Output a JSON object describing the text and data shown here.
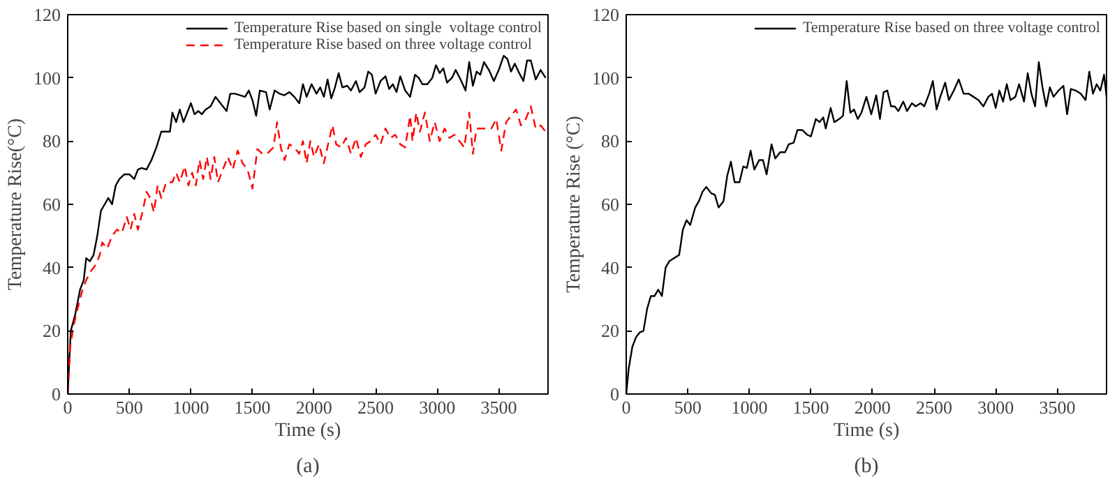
{
  "chart_data": [
    {
      "type": "line",
      "xlabel": "Time (s)",
      "ylabel": "Temperature Rise(°C)",
      "annotations": [
        "(a)"
      ],
      "xlim": [
        0,
        3900
      ],
      "ylim": [
        0,
        120
      ],
      "xticks": [
        0,
        500,
        1000,
        1500,
        2000,
        2500,
        3000,
        3500
      ],
      "yticks": [
        0,
        20,
        40,
        60,
        80,
        100,
        120
      ],
      "grid": false,
      "legend": "top right",
      "series": [
        {
          "name": "Temperature Rise based on single  voltage control",
          "color": "#000000",
          "line_style": "solid",
          "x": [
            0,
            25,
            60,
            100,
            130,
            150,
            180,
            210,
            240,
            270,
            300,
            330,
            360,
            390,
            420,
            460,
            500,
            540,
            570,
            600,
            640,
            680,
            720,
            760,
            800,
            830,
            850,
            880,
            910,
            940,
            980,
            1000,
            1030,
            1060,
            1090,
            1120,
            1160,
            1200,
            1240,
            1290,
            1320,
            1360,
            1400,
            1440,
            1470,
            1500,
            1530,
            1560,
            1610,
            1640,
            1680,
            1720,
            1760,
            1800,
            1840,
            1880,
            1910,
            1940,
            1980,
            2020,
            2050,
            2080,
            2110,
            2140,
            2170,
            2200,
            2230,
            2270,
            2300,
            2340,
            2370,
            2410,
            2440,
            2470,
            2500,
            2540,
            2580,
            2610,
            2640,
            2670,
            2700,
            2740,
            2780,
            2820,
            2850,
            2880,
            2920,
            2960,
            2990,
            3020,
            3050,
            3080,
            3120,
            3150,
            3190,
            3230,
            3260,
            3290,
            3320,
            3350,
            3380,
            3420,
            3460,
            3500,
            3540,
            3570,
            3600,
            3630,
            3660,
            3700,
            3730,
            3760,
            3800,
            3840,
            3880
          ],
          "values": [
            0,
            20,
            25,
            33,
            36,
            43,
            42,
            44,
            50,
            58,
            60,
            62,
            60,
            66,
            68,
            69.5,
            69.5,
            68,
            71,
            71.5,
            71,
            74,
            78,
            83,
            83,
            83,
            89,
            86,
            90,
            86,
            90,
            92,
            88.5,
            89.5,
            88.5,
            90,
            91,
            94,
            92,
            89.5,
            95,
            95,
            94.5,
            94,
            96,
            93,
            88,
            96,
            95.5,
            90,
            96,
            95,
            94.5,
            95.5,
            94,
            92,
            98,
            94,
            98,
            95,
            97,
            94,
            99.5,
            93.5,
            97,
            101.5,
            97,
            97.5,
            96,
            99,
            95.5,
            97,
            102,
            101,
            95,
            99,
            100.5,
            96.5,
            98,
            95.5,
            100.5,
            96,
            94,
            101,
            100,
            98,
            98,
            100,
            104,
            101.5,
            103,
            98.5,
            100,
            102.5,
            99.5,
            96,
            105,
            97.5,
            102,
            101,
            105,
            102.5,
            99,
            102.5,
            107,
            106,
            102,
            104.5,
            102,
            99,
            105.5,
            105.5,
            99.5,
            102.5,
            100
          ]
        },
        {
          "name": "Temperature Rise based on three voltage control",
          "color": "#ff0000",
          "line_style": "dashed",
          "x": [
            0,
            20,
            50,
            80,
            120,
            150,
            190,
            230,
            260,
            280,
            320,
            360,
            400,
            440,
            480,
            510,
            540,
            570,
            610,
            640,
            670,
            700,
            730,
            760,
            800,
            850,
            880,
            910,
            950,
            980,
            1010,
            1040,
            1070,
            1100,
            1130,
            1160,
            1190,
            1220,
            1260,
            1300,
            1340,
            1380,
            1420,
            1460,
            1500,
            1540,
            1580,
            1620,
            1670,
            1700,
            1730,
            1760,
            1800,
            1840,
            1880,
            1910,
            1940,
            1970,
            2000,
            2040,
            2080,
            2120,
            2150,
            2180,
            2220,
            2260,
            2300,
            2340,
            2380,
            2420,
            2460,
            2500,
            2540,
            2580,
            2620,
            2660,
            2700,
            2740,
            2780,
            2800,
            2830,
            2860,
            2900,
            2940,
            2980,
            3020,
            3060,
            3100,
            3140,
            3180,
            3220,
            3260,
            3290,
            3320,
            3380,
            3440,
            3480,
            3520,
            3560,
            3600,
            3640,
            3680,
            3720,
            3760,
            3800,
            3840,
            3880
          ],
          "values": [
            0,
            15,
            22,
            27,
            33,
            36,
            39,
            41,
            44,
            48,
            46,
            50,
            52,
            51,
            56,
            52,
            57,
            52,
            58,
            64,
            62,
            57.5,
            66,
            62,
            67,
            67,
            70,
            67,
            72,
            66,
            70,
            66,
            74,
            68,
            75,
            68,
            75,
            67,
            71,
            75,
            71,
            77,
            73,
            71,
            65,
            77.5,
            76,
            76,
            78,
            86,
            78,
            74,
            79,
            78,
            76,
            80,
            73,
            80,
            75,
            79,
            73,
            80,
            85,
            79,
            78,
            81,
            76,
            81,
            75,
            79,
            80,
            82,
            79,
            84,
            81,
            82,
            79,
            78,
            88,
            80,
            89,
            83,
            89,
            80,
            86,
            80,
            84,
            81,
            82,
            80,
            78,
            89,
            76,
            84,
            84,
            84,
            87,
            77,
            86,
            88,
            90,
            85,
            87,
            91,
            84,
            85,
            83
          ]
        }
      ]
    },
    {
      "type": "line",
      "xlabel": "Time (s)",
      "ylabel": "Temperature Rise (°C)",
      "annotations": [
        "(b)"
      ],
      "xlim": [
        0,
        3900
      ],
      "ylim": [
        0,
        120
      ],
      "xticks": [
        0,
        500,
        1000,
        1500,
        2000,
        2500,
        3000,
        3500
      ],
      "yticks": [
        0,
        20,
        40,
        60,
        80,
        100,
        120
      ],
      "grid": false,
      "legend": "top right",
      "series": [
        {
          "name": "Temperature Rise based on three voltage control",
          "color": "#000000",
          "line_style": "solid",
          "x": [
            0,
            20,
            50,
            80,
            110,
            140,
            170,
            200,
            230,
            260,
            290,
            320,
            350,
            390,
            430,
            460,
            490,
            520,
            560,
            590,
            620,
            650,
            690,
            720,
            750,
            790,
            820,
            850,
            880,
            920,
            950,
            980,
            1010,
            1040,
            1080,
            1110,
            1140,
            1180,
            1210,
            1250,
            1290,
            1320,
            1360,
            1390,
            1430,
            1470,
            1500,
            1540,
            1570,
            1600,
            1620,
            1660,
            1690,
            1730,
            1760,
            1790,
            1820,
            1850,
            1880,
            1910,
            1950,
            1990,
            2030,
            2060,
            2090,
            2120,
            2150,
            2180,
            2210,
            2250,
            2280,
            2320,
            2350,
            2390,
            2420,
            2460,
            2490,
            2520,
            2550,
            2590,
            2620,
            2660,
            2700,
            2740,
            2780,
            2820,
            2860,
            2900,
            2940,
            2970,
            3000,
            3030,
            3060,
            3090,
            3120,
            3160,
            3190,
            3230,
            3260,
            3290,
            3320,
            3350,
            3380,
            3410,
            3440,
            3470,
            3510,
            3550,
            3580,
            3610,
            3650,
            3690,
            3730,
            3760,
            3790,
            3820,
            3850,
            3880,
            3900
          ],
          "values": [
            0,
            8,
            15,
            18,
            19.5,
            20,
            27,
            31,
            31,
            33,
            31,
            40,
            42,
            43,
            44,
            52,
            55,
            53.5,
            59,
            61,
            64,
            65.5,
            63.5,
            63,
            59,
            61,
            69,
            73.5,
            67,
            67,
            72,
            71.5,
            77,
            71,
            74,
            74,
            69.5,
            79,
            74.5,
            76.5,
            76.5,
            79,
            79.5,
            83.5,
            83.5,
            82,
            81.5,
            87,
            86,
            87.5,
            84,
            90.5,
            86,
            87,
            88,
            99,
            89,
            90,
            87,
            89,
            94,
            88.5,
            94.5,
            87,
            95.5,
            96,
            91,
            91,
            89.5,
            92.5,
            89.5,
            92,
            91,
            92,
            91,
            95,
            99,
            90,
            94,
            98.5,
            93,
            96,
            99.5,
            95,
            95,
            94,
            93,
            91,
            94,
            95,
            90.5,
            96,
            92.5,
            98,
            93,
            94,
            98,
            92.5,
            101.5,
            95,
            91,
            105,
            97,
            91,
            97,
            94,
            96,
            97.5,
            88.5,
            96.5,
            96,
            95,
            93,
            102,
            95,
            98,
            96,
            101,
            94
          ]
        }
      ]
    }
  ]
}
